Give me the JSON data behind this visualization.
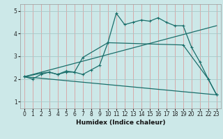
{
  "background_color": "#cce8e8",
  "grid_color_h": "#a8c8c8",
  "grid_color_v": "#d8a0a0",
  "line_color": "#1a6e6a",
  "xlabel": "Humidex (Indice chaleur)",
  "xlim": [
    -0.5,
    23.5
  ],
  "ylim": [
    0.7,
    5.3
  ],
  "yticks": [
    1,
    2,
    3,
    4,
    5
  ],
  "xticks": [
    0,
    1,
    2,
    3,
    4,
    5,
    6,
    7,
    8,
    9,
    10,
    11,
    12,
    13,
    14,
    15,
    16,
    17,
    18,
    19,
    20,
    21,
    22,
    23
  ],
  "line1_x": [
    0,
    1,
    2,
    3,
    4,
    5,
    6,
    7,
    8,
    9,
    10,
    11,
    12,
    13,
    14,
    15,
    16,
    17,
    18,
    19,
    20,
    21,
    22,
    23
  ],
  "line1_y": [
    2.1,
    2.0,
    2.2,
    2.3,
    2.2,
    2.3,
    2.3,
    2.2,
    2.4,
    2.6,
    3.6,
    4.9,
    4.4,
    4.5,
    4.6,
    4.55,
    4.7,
    4.5,
    4.35,
    4.35,
    3.4,
    2.75,
    2.0,
    1.3
  ],
  "line2_x": [
    0,
    2,
    3,
    4,
    5,
    6,
    7,
    10,
    19,
    22,
    23
  ],
  "line2_y": [
    2.1,
    2.25,
    2.3,
    2.2,
    2.35,
    2.3,
    2.95,
    3.6,
    3.5,
    2.0,
    1.3
  ],
  "line3_x": [
    0,
    23
  ],
  "line3_y": [
    2.1,
    4.35
  ],
  "line4_x": [
    0,
    23
  ],
  "line4_y": [
    2.1,
    1.3
  ],
  "tick_fontsize": 5.5,
  "xlabel_fontsize": 6.5
}
